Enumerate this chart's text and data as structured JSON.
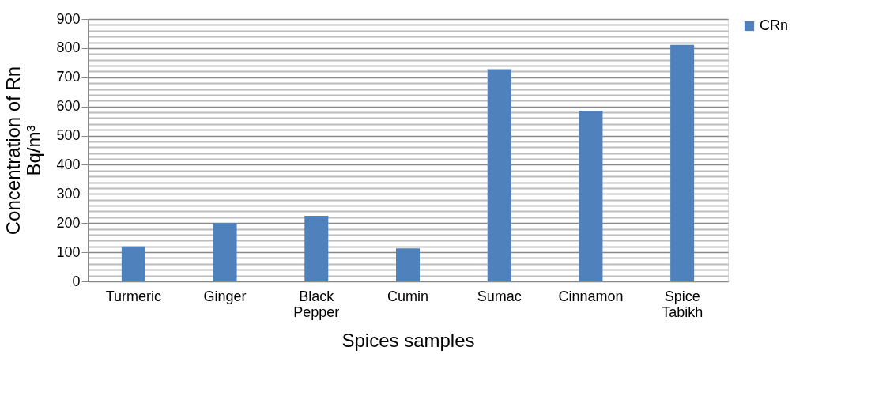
{
  "chart_data": {
    "type": "bar",
    "xlabel": "Spices samples",
    "ylabel": "Concentration of Rn\nBq/m³",
    "categories": [
      "Turmeric",
      "Ginger",
      "Black Pepper",
      "Cumin",
      "Sumac",
      "Cinnamon",
      "Spice Tabikh"
    ],
    "series": [
      {
        "name": "CRn",
        "color": "#4f81bd",
        "values": [
          120,
          200,
          225,
          113,
          728,
          585,
          811
        ]
      }
    ],
    "ylim": [
      0,
      900
    ],
    "yticks": [
      0,
      {
        "value": 20,
        "label": null
      },
      {
        "value": 40,
        "label": null
      },
      {
        "value": 60,
        "label": null
      },
      {
        "value": 80,
        "label": null
      },
      100,
      {
        "value": 120,
        "label": null
      },
      {
        "value": 140,
        "label": null
      },
      {
        "value": 160,
        "label": null
      },
      {
        "value": 180,
        "label": null
      },
      200,
      {
        "value": 220,
        "label": null
      },
      {
        "value": 240,
        "label": null
      },
      {
        "value": 260,
        "label": null
      },
      {
        "value": 280,
        "label": null
      },
      300,
      {
        "value": 320,
        "label": null
      },
      {
        "value": 340,
        "label": null
      },
      {
        "value": 360,
        "label": null
      },
      {
        "value": 380,
        "label": null
      },
      400,
      {
        "value": 420,
        "label": null
      },
      {
        "value": 440,
        "label": null
      },
      {
        "value": 460,
        "label": null
      },
      {
        "value": 480,
        "label": null
      },
      500,
      {
        "value": 520,
        "label": null
      },
      {
        "value": 540,
        "label": null
      },
      {
        "value": 560,
        "label": null
      },
      {
        "value": 580,
        "label": null
      },
      600,
      {
        "value": 620,
        "label": null
      },
      {
        "value": 640,
        "label": null
      },
      {
        "value": 660,
        "label": null
      },
      {
        "value": 680,
        "label": null
      },
      700,
      {
        "value": 720,
        "label": null
      },
      {
        "value": 740,
        "label": null
      },
      {
        "value": 760,
        "label": null
      },
      {
        "value": 780,
        "label": null
      },
      800,
      {
        "value": 820,
        "label": null
      },
      {
        "value": 840,
        "label": null
      },
      {
        "value": 860,
        "label": null
      },
      {
        "value": 880,
        "label": null
      },
      900
    ],
    "grid": "y",
    "legend": "right"
  }
}
